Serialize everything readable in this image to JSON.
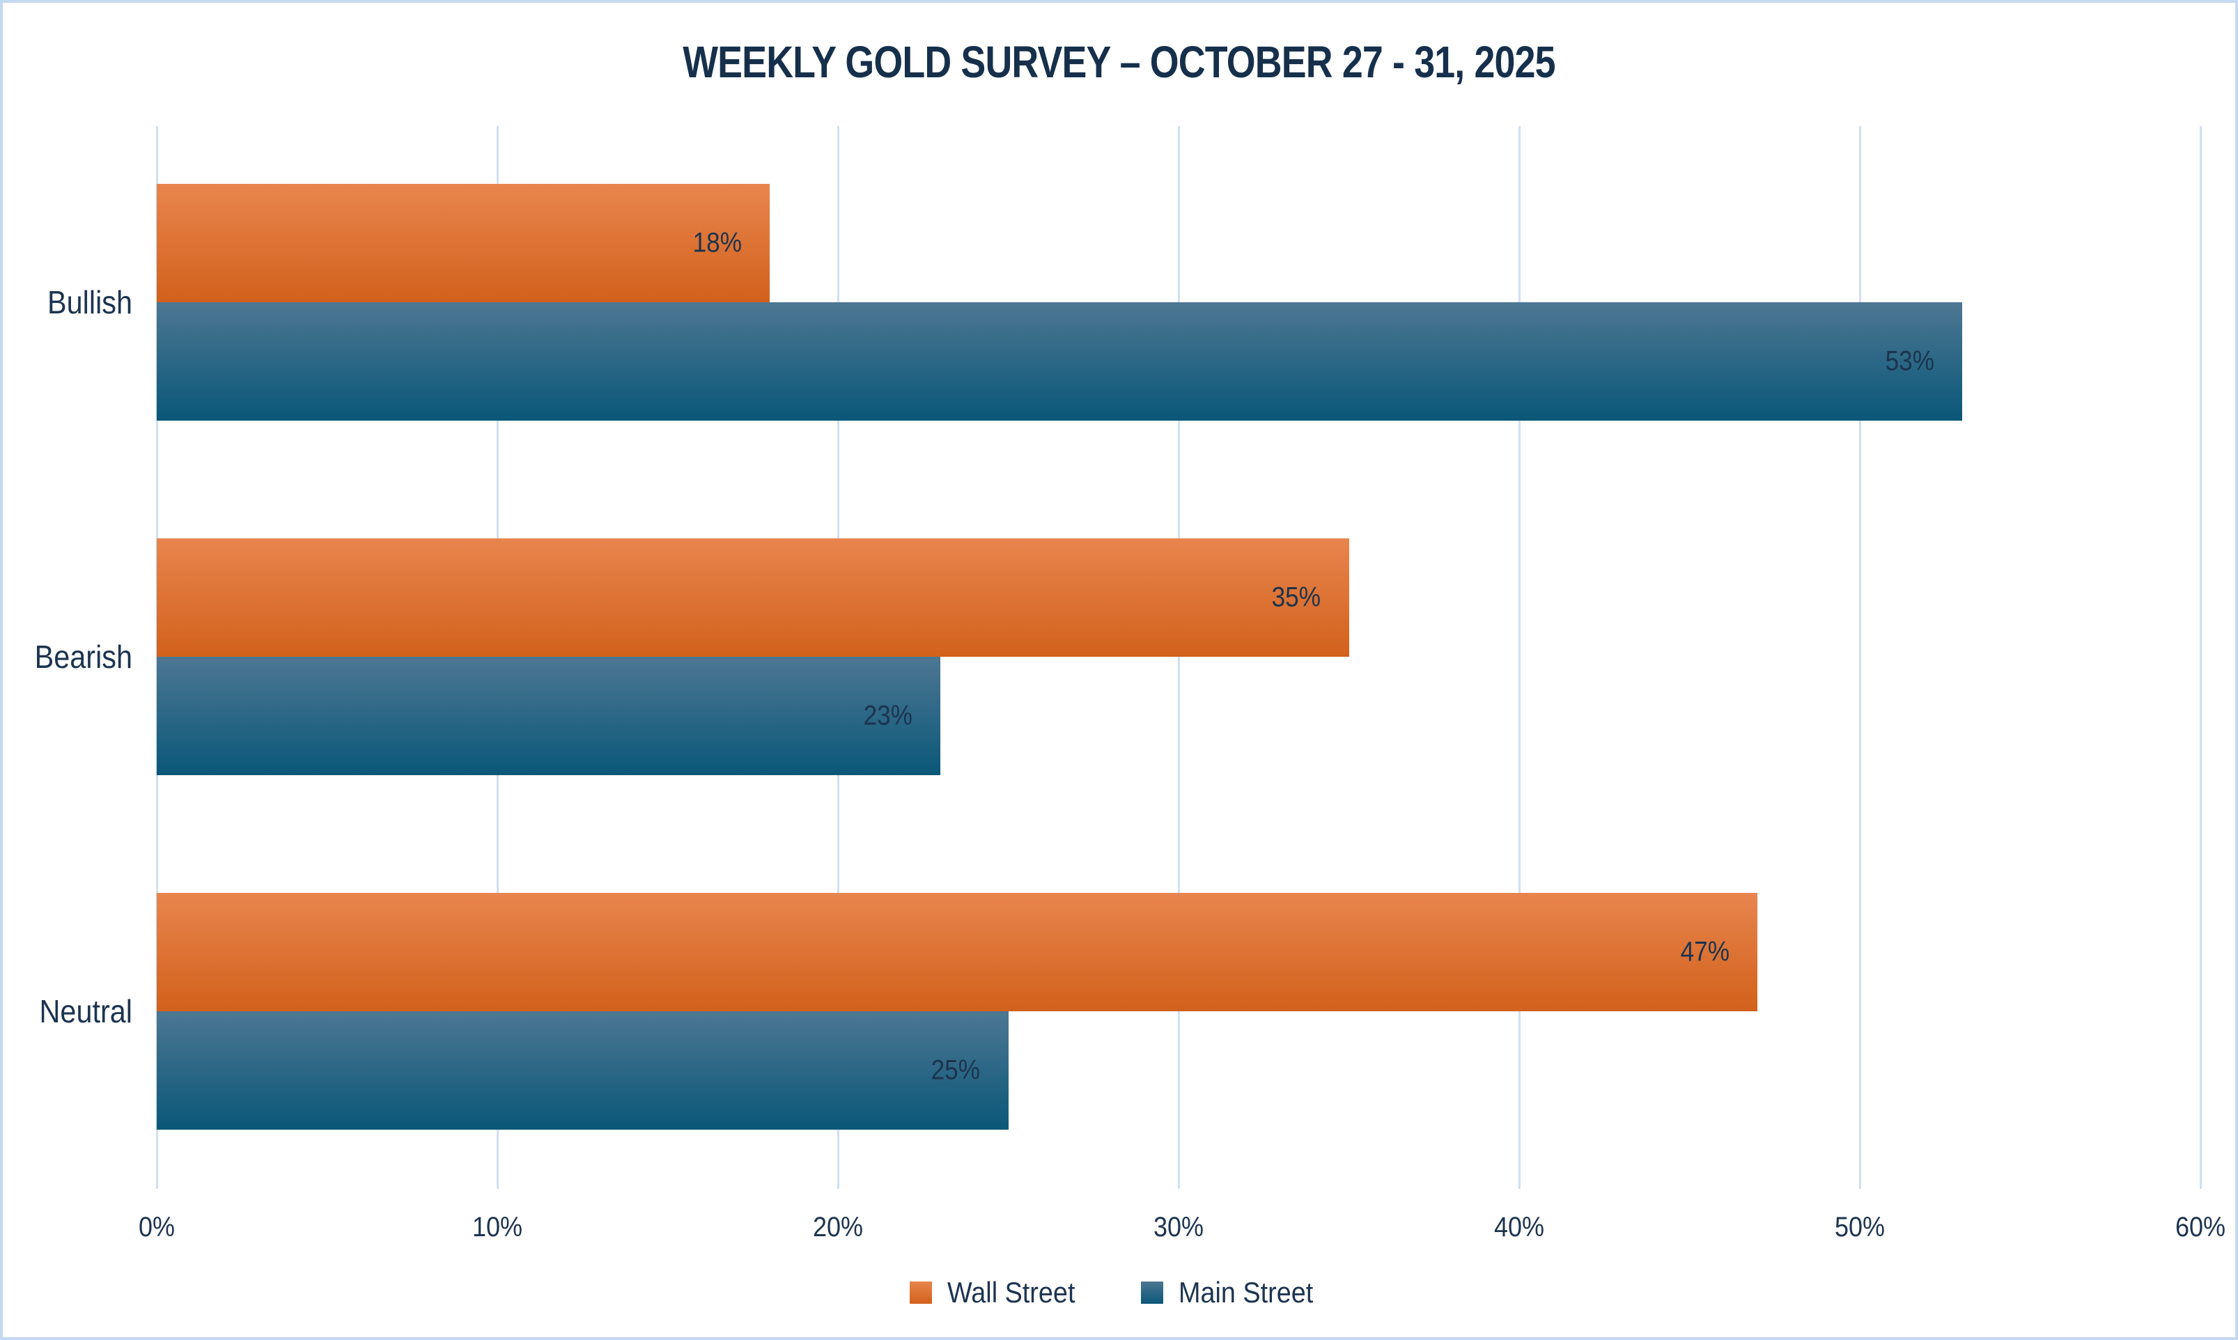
{
  "chart_data": {
    "type": "bar",
    "orientation": "horizontal",
    "title": "WEEKLY GOLD SURVEY – OCTOBER 27 - 31, 2025",
    "categories": [
      "Bullish",
      "Bearish",
      "Neutral"
    ],
    "series": [
      {
        "name": "Wall Street",
        "values": [
          18,
          35,
          47
        ],
        "color_top": "#e8854e",
        "color_bottom": "#d2611b"
      },
      {
        "name": "Main Street",
        "values": [
          53,
          23,
          25
        ],
        "color_top": "#4d7793",
        "color_bottom": "#0a5778"
      }
    ],
    "value_labels": [
      [
        "18%",
        "35%",
        "47%"
      ],
      [
        "53%",
        "23%",
        "25%"
      ]
    ],
    "xlabel": "",
    "ylabel": "",
    "xlim": [
      0,
      60
    ],
    "x_ticks": [
      "0%",
      "10%",
      "20%",
      "30%",
      "40%",
      "50%",
      "60%"
    ],
    "grid": true,
    "legend_position": "bottom"
  },
  "colors": {
    "title_text": "#16304c",
    "label_text": "#1d3450",
    "gridline": "#cfe0f2",
    "frame_border": "#c3d9f0",
    "background": "#ffffff",
    "wall_street_orange": "#e2641e",
    "main_street_blue": "#155a7e"
  }
}
